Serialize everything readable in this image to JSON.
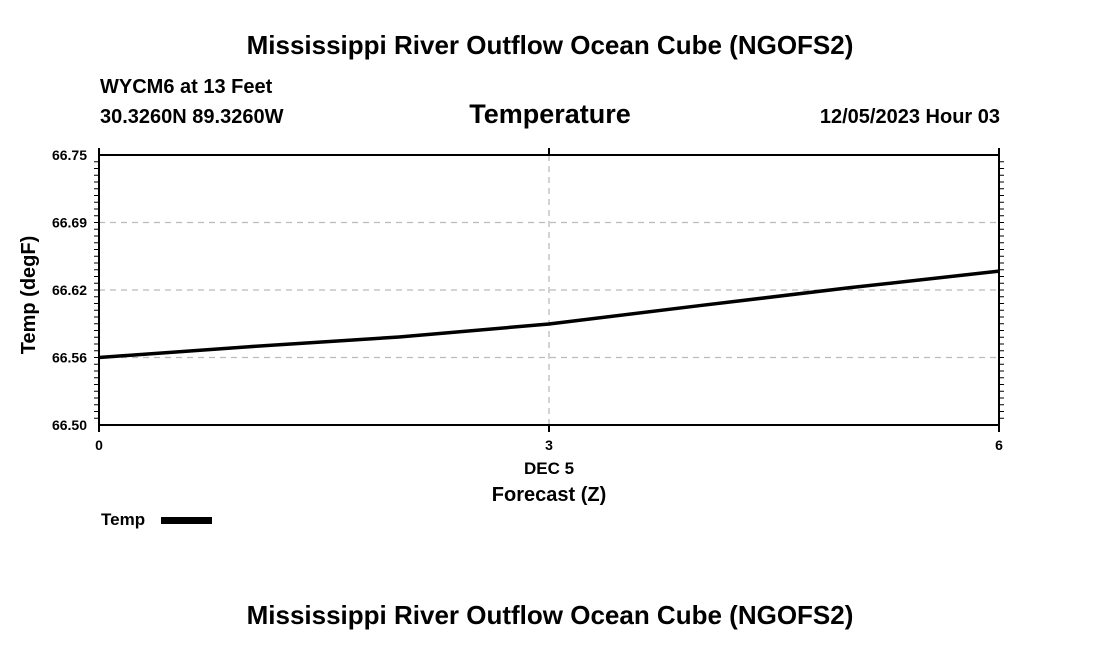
{
  "header": {
    "title": "Mississippi River Outflow Ocean Cube (NGOFS2)",
    "station": "WYCM6 at 13 Feet",
    "coords": "30.3260N  89.3260W",
    "datetime": "12/05/2023 Hour 03"
  },
  "footer": {
    "title": "Mississippi River Outflow Ocean Cube (NGOFS2)"
  },
  "chart_data": {
    "type": "line",
    "title": "Temperature",
    "xlabel": "Forecast (Z)",
    "ylabel": "Temp (degF)",
    "x_date_label": "DEC 5",
    "xlim": [
      0,
      6
    ],
    "ylim": [
      66.5,
      66.75
    ],
    "x_ticks": [
      0,
      3,
      6
    ],
    "x_tick_labels": [
      "0",
      "3",
      "6"
    ],
    "y_ticks": [
      66.5,
      66.5625,
      66.625,
      66.6875,
      66.75
    ],
    "y_tick_labels": [
      "66.50",
      "66.56",
      "66.62",
      "66.69",
      "66.75"
    ],
    "grid": true,
    "legend": {
      "label": "Temp",
      "placement": "bottom-left"
    },
    "series": [
      {
        "name": "Temp",
        "color": "#000000",
        "x": [
          0,
          1,
          2,
          3,
          4,
          5,
          6
        ],
        "values": [
          66.5625,
          66.5725,
          66.5815,
          66.5935,
          66.6105,
          66.627,
          66.6425
        ]
      }
    ]
  }
}
